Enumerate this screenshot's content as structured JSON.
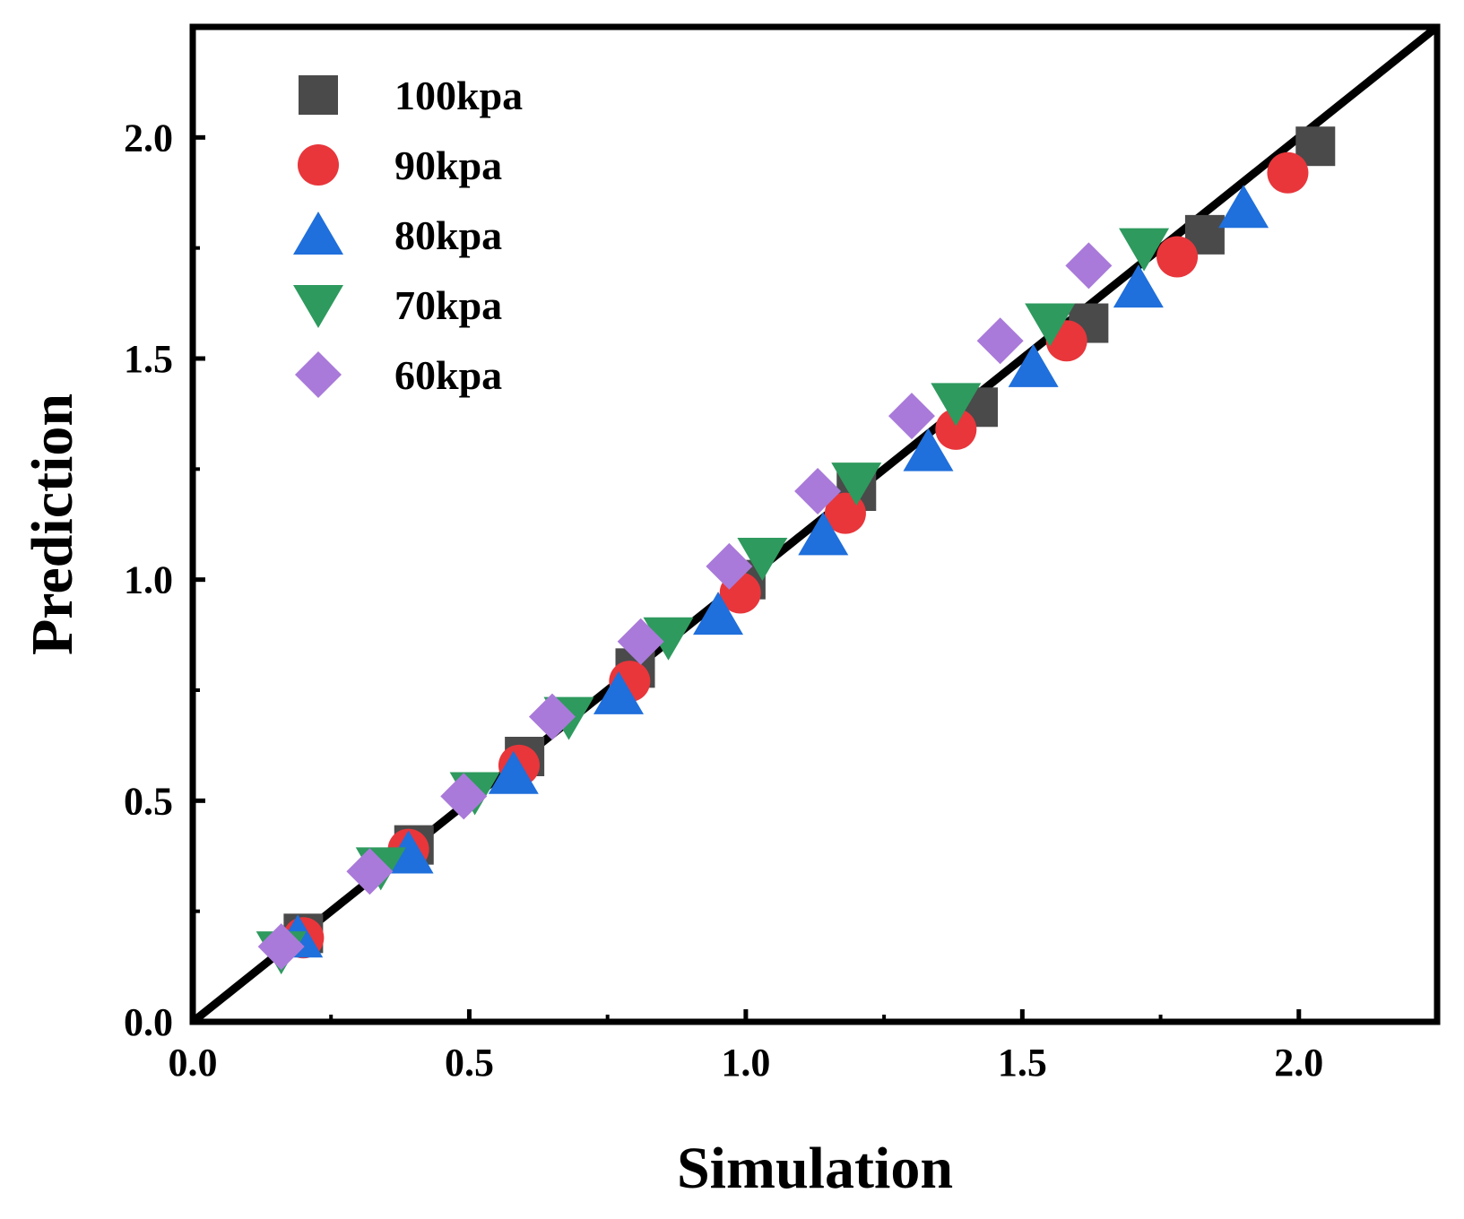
{
  "chart_data": {
    "type": "scatter",
    "title": "",
    "xlabel": "Simulation",
    "ylabel": "Prediction",
    "xlim": [
      0.0,
      2.25
    ],
    "ylim": [
      0.0,
      2.25
    ],
    "xticks": [
      "0.0",
      "0.5",
      "1.0",
      "1.5",
      "2.0"
    ],
    "yticks": [
      "0.0",
      "0.5",
      "1.0",
      "1.5",
      "2.0"
    ],
    "grid": false,
    "legend_position": "top-left",
    "reference_line": {
      "from": [
        0,
        0
      ],
      "to": [
        2.25,
        2.25
      ],
      "color": "#000000"
    },
    "series": [
      {
        "name": "100kpa",
        "marker": "square",
        "color": "#4a4a4a",
        "points": [
          [
            0.2,
            0.2
          ],
          [
            0.4,
            0.4
          ],
          [
            0.6,
            0.6
          ],
          [
            0.8,
            0.8
          ],
          [
            1.0,
            1.0
          ],
          [
            1.2,
            1.2
          ],
          [
            1.42,
            1.39
          ],
          [
            1.62,
            1.58
          ],
          [
            1.83,
            1.78
          ],
          [
            2.03,
            1.98
          ]
        ]
      },
      {
        "name": "90kpa",
        "marker": "circle",
        "color": "#e8363b",
        "points": [
          [
            0.2,
            0.19
          ],
          [
            0.39,
            0.39
          ],
          [
            0.59,
            0.58
          ],
          [
            0.79,
            0.77
          ],
          [
            0.99,
            0.97
          ],
          [
            1.18,
            1.15
          ],
          [
            1.38,
            1.34
          ],
          [
            1.58,
            1.54
          ],
          [
            1.78,
            1.73
          ],
          [
            1.98,
            1.92
          ]
        ]
      },
      {
        "name": "80kpa",
        "marker": "triangle-up",
        "color": "#1f6fdc",
        "points": [
          [
            0.19,
            0.19
          ],
          [
            0.39,
            0.38
          ],
          [
            0.58,
            0.56
          ],
          [
            0.77,
            0.74
          ],
          [
            0.95,
            0.92
          ],
          [
            1.14,
            1.1
          ],
          [
            1.33,
            1.29
          ],
          [
            1.52,
            1.48
          ],
          [
            1.71,
            1.66
          ],
          [
            1.9,
            1.84
          ]
        ]
      },
      {
        "name": "70kpa",
        "marker": "triangle-down",
        "color": "#2e9a5e",
        "points": [
          [
            0.16,
            0.16
          ],
          [
            0.34,
            0.35
          ],
          [
            0.51,
            0.52
          ],
          [
            0.68,
            0.69
          ],
          [
            0.86,
            0.87
          ],
          [
            1.03,
            1.05
          ],
          [
            1.2,
            1.22
          ],
          [
            1.38,
            1.4
          ],
          [
            1.55,
            1.58
          ],
          [
            1.72,
            1.75
          ]
        ]
      },
      {
        "name": "60kpa",
        "marker": "diamond",
        "color": "#a97ad9",
        "points": [
          [
            0.16,
            0.17
          ],
          [
            0.32,
            0.34
          ],
          [
            0.49,
            0.51
          ],
          [
            0.65,
            0.69
          ],
          [
            0.81,
            0.86
          ],
          [
            0.97,
            1.03
          ],
          [
            1.13,
            1.2
          ],
          [
            1.3,
            1.37
          ],
          [
            1.46,
            1.54
          ],
          [
            1.62,
            1.71
          ]
        ]
      }
    ]
  }
}
